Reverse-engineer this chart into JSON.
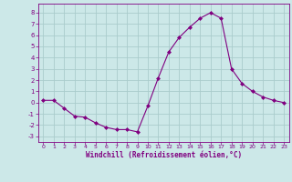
{
  "x": [
    0,
    1,
    2,
    3,
    4,
    5,
    6,
    7,
    8,
    9,
    10,
    11,
    12,
    13,
    14,
    15,
    16,
    17,
    18,
    19,
    20,
    21,
    22,
    23
  ],
  "y": [
    0.2,
    0.2,
    -0.5,
    -1.2,
    -1.3,
    -1.8,
    -2.2,
    -2.4,
    -2.4,
    -2.6,
    -0.3,
    2.2,
    4.5,
    5.8,
    6.7,
    7.5,
    8.0,
    7.5,
    3.0,
    1.7,
    1.0,
    0.5,
    0.2,
    0.0
  ],
  "line_color": "#800080",
  "marker_color": "#800080",
  "background_color": "#cce8e8",
  "grid_color": "#aacccc",
  "xlabel": "Windchill (Refroidissement éolien,°C)",
  "xlabel_color": "#800080",
  "tick_color": "#800080",
  "ylim": [
    -3.5,
    8.8
  ],
  "xlim": [
    -0.5,
    23.5
  ],
  "yticks": [
    -3,
    -2,
    -1,
    0,
    1,
    2,
    3,
    4,
    5,
    6,
    7,
    8
  ],
  "xticks": [
    0,
    1,
    2,
    3,
    4,
    5,
    6,
    7,
    8,
    9,
    10,
    11,
    12,
    13,
    14,
    15,
    16,
    17,
    18,
    19,
    20,
    21,
    22,
    23
  ],
  "spine_color": "#800080"
}
